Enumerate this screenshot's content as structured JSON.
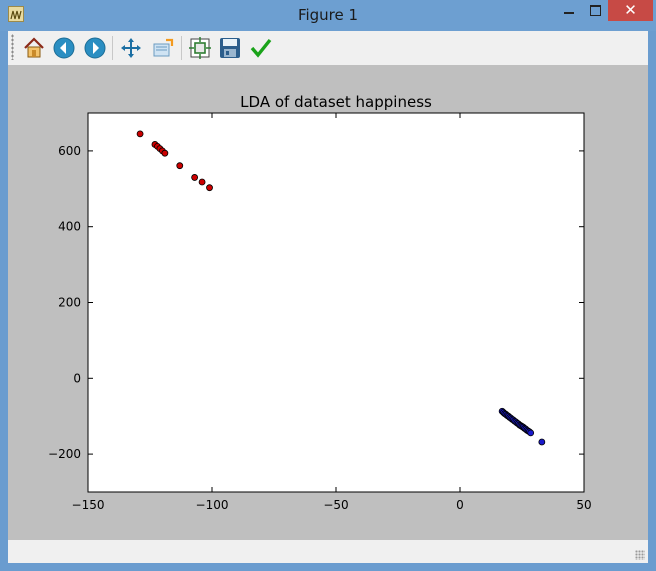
{
  "window": {
    "title": "Figure 1",
    "close_glyph": "✕"
  },
  "toolbar": {
    "buttons": [
      {
        "name": "home-icon"
      },
      {
        "name": "back-arrow-icon"
      },
      {
        "name": "forward-arrow-icon"
      },
      {
        "name": "pan-move-icon"
      },
      {
        "name": "zoom-rect-icon"
      },
      {
        "name": "configure-subplots-icon"
      },
      {
        "name": "save-disk-icon"
      },
      {
        "name": "edit-check-icon"
      }
    ]
  },
  "chart_data": {
    "type": "scatter",
    "title": "LDA of dataset happiness",
    "xlabel": "",
    "ylabel": "",
    "xlim": [
      -150,
      50
    ],
    "ylim": [
      -300,
      700
    ],
    "xticks": [
      -150,
      -100,
      -50,
      0,
      50
    ],
    "yticks": [
      -200,
      0,
      200,
      400,
      600
    ],
    "xtick_labels": [
      "−150",
      "−100",
      "−50",
      "0",
      "50"
    ],
    "ytick_labels": [
      "−200",
      "0",
      "200",
      "400",
      "600"
    ],
    "grid": false,
    "series": [
      {
        "color": "#cc0000",
        "points": [
          [
            -129,
            645
          ],
          [
            -123,
            617
          ],
          [
            -122,
            612
          ],
          [
            -121,
            606
          ],
          [
            -120,
            600
          ],
          [
            -119,
            594
          ],
          [
            -113,
            561
          ],
          [
            -107,
            530
          ],
          [
            -104,
            518
          ],
          [
            -101,
            503
          ]
        ]
      },
      {
        "color": "#1a1acc",
        "points": [
          [
            17,
            -87
          ],
          [
            17.5,
            -90
          ],
          [
            18,
            -93
          ],
          [
            18.5,
            -95
          ],
          [
            19,
            -98
          ],
          [
            19.5,
            -100
          ],
          [
            20,
            -103
          ],
          [
            20.5,
            -105
          ],
          [
            21,
            -108
          ],
          [
            21.5,
            -110
          ],
          [
            22,
            -113
          ],
          [
            22.5,
            -115
          ],
          [
            23,
            -118
          ],
          [
            23.5,
            -120
          ],
          [
            24,
            -123
          ],
          [
            24.5,
            -125
          ],
          [
            25,
            -127
          ],
          [
            25.5,
            -129
          ],
          [
            26,
            -132
          ],
          [
            26.5,
            -134
          ],
          [
            27,
            -137
          ],
          [
            27.5,
            -139
          ],
          [
            28,
            -141
          ],
          [
            28.5,
            -144
          ],
          [
            33,
            -168
          ]
        ]
      }
    ]
  }
}
